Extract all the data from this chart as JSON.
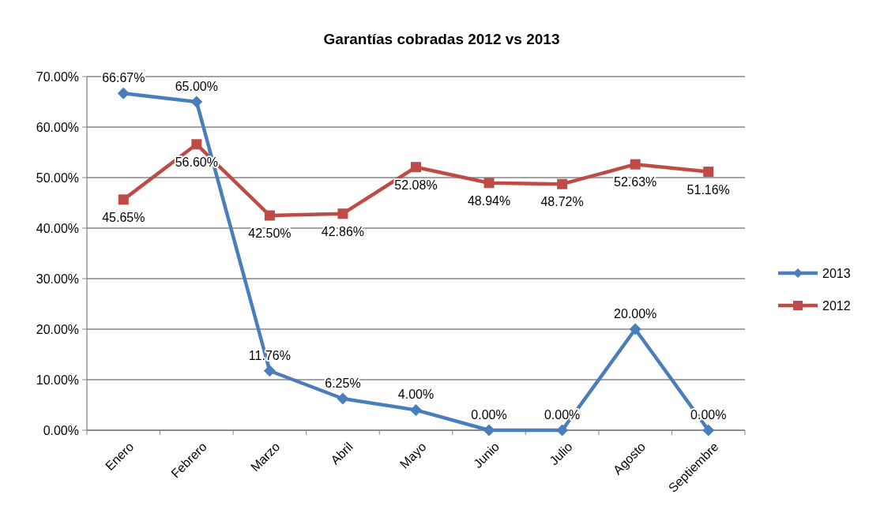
{
  "chart_data": {
    "type": "line",
    "title": "Garantías cobradas 2012 vs 2013",
    "categories": [
      "Enero",
      "Febrero",
      "Marzo",
      "Abril",
      "Mayo",
      "Junio",
      "Julio",
      "Agosto",
      "Septiembre"
    ],
    "series": [
      {
        "name": "2013",
        "color": "#4a7ebb",
        "marker": "diamond",
        "values": [
          66.67,
          65.0,
          11.76,
          6.25,
          4.0,
          0,
          0,
          20.0,
          0
        ],
        "value_labels": [
          "66.67%",
          "65.00%",
          "11.76%",
          "6.25%",
          "4.00%",
          "0.00%",
          "0.00%",
          "20.00%",
          "0.00%"
        ]
      },
      {
        "name": "2012",
        "color": "#be4b48",
        "marker": "square",
        "values": [
          45.65,
          56.6,
          42.5,
          42.86,
          52.08,
          48.94,
          48.72,
          52.63,
          51.16
        ],
        "value_labels": [
          "45.65%",
          "56.60%",
          "42.50%",
          "42.86%",
          "52.08%",
          "48.94%",
          "48.72%",
          "52.63%",
          "51.16%"
        ]
      }
    ],
    "ylim": [
      0,
      70
    ],
    "yticks": [
      {
        "value": 0,
        "label": "0.00%"
      },
      {
        "value": 10,
        "label": "10.00%"
      },
      {
        "value": 20,
        "label": "20.00%"
      },
      {
        "value": 30,
        "label": "30.00%"
      },
      {
        "value": 40,
        "label": "40.00%"
      },
      {
        "value": 50,
        "label": "50.00%"
      },
      {
        "value": 60,
        "label": "60.00%"
      },
      {
        "value": 70,
        "label": "70.00%"
      }
    ],
    "grid": "y",
    "legend": "right",
    "line_style": "solid"
  }
}
